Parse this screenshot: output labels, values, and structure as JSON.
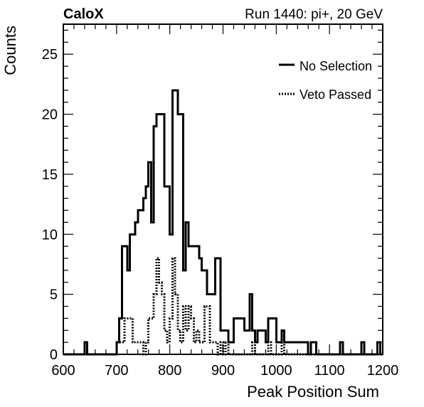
{
  "header": {
    "left_label": "CaloX",
    "right_label": "Run 1440: pi+, 20 GeV"
  },
  "chart_data": {
    "type": "histogram",
    "xlabel": "Peak Position Sum",
    "ylabel": "Counts",
    "xlim": [
      600,
      1200
    ],
    "ylim": [
      0,
      27.5
    ],
    "xticks": [
      600,
      700,
      800,
      900,
      1000,
      1100,
      1200
    ],
    "yticks": [
      0,
      5,
      10,
      15,
      20,
      25
    ],
    "legend_position": "top-right",
    "bin_width": 5,
    "series": [
      {
        "name": "No Selection",
        "style": "solid",
        "color": "#000000",
        "bins": [
          {
            "x": 640,
            "y": 1
          },
          {
            "x": 700,
            "y": 1
          },
          {
            "x": 705,
            "y": 3
          },
          {
            "x": 710,
            "y": 9
          },
          {
            "x": 715,
            "y": 9
          },
          {
            "x": 720,
            "y": 7
          },
          {
            "x": 725,
            "y": 10
          },
          {
            "x": 730,
            "y": 10
          },
          {
            "x": 735,
            "y": 11
          },
          {
            "x": 740,
            "y": 12
          },
          {
            "x": 745,
            "y": 12
          },
          {
            "x": 750,
            "y": 13
          },
          {
            "x": 755,
            "y": 14
          },
          {
            "x": 760,
            "y": 16
          },
          {
            "x": 765,
            "y": 11
          },
          {
            "x": 770,
            "y": 19
          },
          {
            "x": 775,
            "y": 20
          },
          {
            "x": 780,
            "y": 20
          },
          {
            "x": 785,
            "y": 20
          },
          {
            "x": 790,
            "y": 14
          },
          {
            "x": 795,
            "y": 14
          },
          {
            "x": 800,
            "y": 10
          },
          {
            "x": 805,
            "y": 22
          },
          {
            "x": 810,
            "y": 22
          },
          {
            "x": 815,
            "y": 20
          },
          {
            "x": 820,
            "y": 20
          },
          {
            "x": 825,
            "y": 7
          },
          {
            "x": 830,
            "y": 11
          },
          {
            "x": 835,
            "y": 9
          },
          {
            "x": 840,
            "y": 9
          },
          {
            "x": 845,
            "y": 9
          },
          {
            "x": 850,
            "y": 9
          },
          {
            "x": 855,
            "y": 8
          },
          {
            "x": 860,
            "y": 7
          },
          {
            "x": 865,
            "y": 7
          },
          {
            "x": 870,
            "y": 5
          },
          {
            "x": 875,
            "y": 5
          },
          {
            "x": 880,
            "y": 5
          },
          {
            "x": 885,
            "y": 8
          },
          {
            "x": 890,
            "y": 8
          },
          {
            "x": 895,
            "y": 2
          },
          {
            "x": 900,
            "y": 2
          },
          {
            "x": 905,
            "y": 2
          },
          {
            "x": 910,
            "y": 1
          },
          {
            "x": 915,
            "y": 1
          },
          {
            "x": 920,
            "y": 3
          },
          {
            "x": 925,
            "y": 3
          },
          {
            "x": 930,
            "y": 3
          },
          {
            "x": 935,
            "y": 3
          },
          {
            "x": 940,
            "y": 2
          },
          {
            "x": 945,
            "y": 2
          },
          {
            "x": 950,
            "y": 5
          },
          {
            "x": 955,
            "y": 2
          },
          {
            "x": 960,
            "y": 1
          },
          {
            "x": 965,
            "y": 2
          },
          {
            "x": 970,
            "y": 2
          },
          {
            "x": 975,
            "y": 2
          },
          {
            "x": 980,
            "y": 1
          },
          {
            "x": 985,
            "y": 3
          },
          {
            "x": 990,
            "y": 3
          },
          {
            "x": 995,
            "y": 3
          },
          {
            "x": 1000,
            "y": 1
          },
          {
            "x": 1005,
            "y": 1
          },
          {
            "x": 1010,
            "y": 2
          },
          {
            "x": 1015,
            "y": 1
          },
          {
            "x": 1020,
            "y": 1
          },
          {
            "x": 1025,
            "y": 1
          },
          {
            "x": 1030,
            "y": 1
          },
          {
            "x": 1035,
            "y": 1
          },
          {
            "x": 1040,
            "y": 1
          },
          {
            "x": 1045,
            "y": 1
          },
          {
            "x": 1050,
            "y": 1
          },
          {
            "x": 1055,
            "y": 1
          },
          {
            "x": 1065,
            "y": 1
          },
          {
            "x": 1070,
            "y": 1
          },
          {
            "x": 1120,
            "y": 1
          },
          {
            "x": 1160,
            "y": 1
          },
          {
            "x": 1190,
            "y": 1
          }
        ]
      },
      {
        "name": "Veto Passed",
        "style": "dotted",
        "color": "#000000",
        "bins": [
          {
            "x": 700,
            "y": 1
          },
          {
            "x": 705,
            "y": 1
          },
          {
            "x": 710,
            "y": 1
          },
          {
            "x": 715,
            "y": 3
          },
          {
            "x": 720,
            "y": 3
          },
          {
            "x": 725,
            "y": 3
          },
          {
            "x": 730,
            "y": 1
          },
          {
            "x": 735,
            "y": 1
          },
          {
            "x": 740,
            "y": 1
          },
          {
            "x": 745,
            "y": 1
          },
          {
            "x": 750,
            "y": 0
          },
          {
            "x": 755,
            "y": 1
          },
          {
            "x": 760,
            "y": 3
          },
          {
            "x": 765,
            "y": 3
          },
          {
            "x": 770,
            "y": 5
          },
          {
            "x": 775,
            "y": 8
          },
          {
            "x": 780,
            "y": 6
          },
          {
            "x": 785,
            "y": 5
          },
          {
            "x": 790,
            "y": 2
          },
          {
            "x": 795,
            "y": 1
          },
          {
            "x": 800,
            "y": 3
          },
          {
            "x": 805,
            "y": 8
          },
          {
            "x": 810,
            "y": 5
          },
          {
            "x": 815,
            "y": 2
          },
          {
            "x": 820,
            "y": 1
          },
          {
            "x": 825,
            "y": 4
          },
          {
            "x": 830,
            "y": 2
          },
          {
            "x": 835,
            "y": 4
          },
          {
            "x": 840,
            "y": 3
          },
          {
            "x": 845,
            "y": 1
          },
          {
            "x": 850,
            "y": 2
          },
          {
            "x": 855,
            "y": 1
          },
          {
            "x": 860,
            "y": 1
          },
          {
            "x": 865,
            "y": 4
          },
          {
            "x": 870,
            "y": 4
          },
          {
            "x": 875,
            "y": 1
          },
          {
            "x": 880,
            "y": 1
          },
          {
            "x": 885,
            "y": 1
          },
          {
            "x": 890,
            "y": 0
          },
          {
            "x": 895,
            "y": 1
          },
          {
            "x": 900,
            "y": 0
          },
          {
            "x": 905,
            "y": 1
          },
          {
            "x": 955,
            "y": 1
          },
          {
            "x": 985,
            "y": 1
          },
          {
            "x": 1010,
            "y": 1
          }
        ]
      }
    ]
  }
}
